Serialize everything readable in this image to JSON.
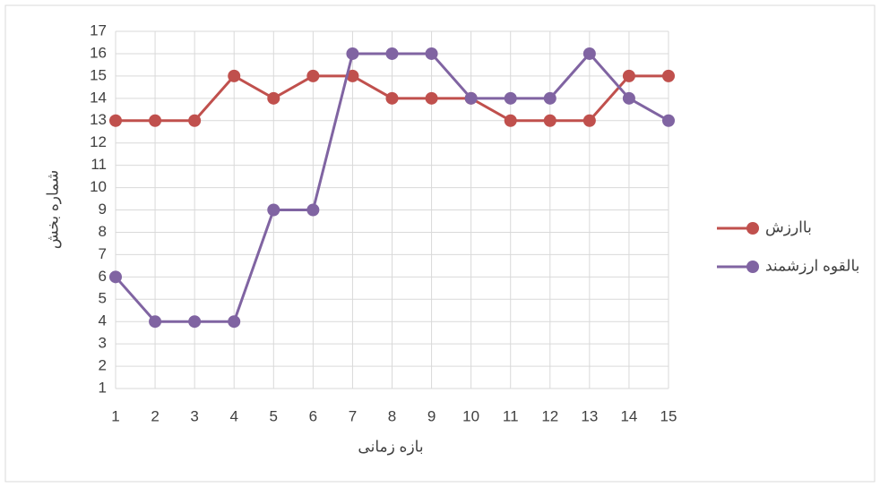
{
  "chart_data": {
    "type": "line",
    "x_label": "بازه زمانی",
    "y_label": "شماره بخش",
    "x": [
      1,
      2,
      3,
      4,
      5,
      6,
      7,
      8,
      9,
      10,
      11,
      12,
      13,
      14,
      15
    ],
    "series": [
      {
        "name": "باارزش",
        "color": "#c0504d",
        "values": [
          13,
          13,
          13,
          15,
          14,
          15,
          15,
          14,
          14,
          14,
          13,
          13,
          13,
          15,
          15
        ]
      },
      {
        "name": "بالقوه ارزشمند",
        "color": "#8064a2",
        "values": [
          6,
          4,
          4,
          4,
          9,
          9,
          16,
          16,
          16,
          14,
          14,
          14,
          16,
          14,
          13
        ]
      }
    ],
    "xlim": [
      1,
      15
    ],
    "xticks": [
      1,
      2,
      3,
      4,
      5,
      6,
      7,
      8,
      9,
      10,
      11,
      12,
      13,
      14,
      15
    ],
    "ylim": [
      1,
      17
    ],
    "yticks": [
      1,
      2,
      3,
      4,
      5,
      6,
      7,
      8,
      9,
      10,
      11,
      12,
      13,
      14,
      15,
      16,
      17
    ],
    "grid": true,
    "legend": "right"
  }
}
